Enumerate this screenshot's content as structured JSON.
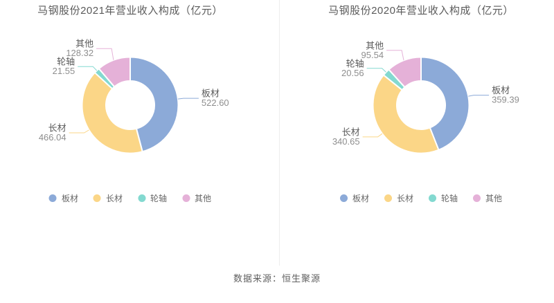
{
  "page": {
    "background": "#ffffff",
    "divider_color": "#ededed"
  },
  "source_note": "数据来源：恒生聚源",
  "chart_data": [
    {
      "type": "pie",
      "title": "马钢股份2021年营业收入构成（亿元）",
      "categories": [
        "板材",
        "长材",
        "轮轴",
        "其他"
      ],
      "values": [
        522.6,
        466.04,
        21.55,
        128.32
      ],
      "colors": [
        "#8caad8",
        "#fbd687",
        "#83d9d0",
        "#e5b1d8"
      ],
      "legend": [
        "板材",
        "长材",
        "轮轴",
        "其他"
      ],
      "legend_position": "bottom",
      "donut": true,
      "start_angle": "top",
      "direction": "clockwise",
      "label_format": "name over value, two decimals, leader lines"
    },
    {
      "type": "pie",
      "title": "马钢股份2020年营业收入构成（亿元）",
      "categories": [
        "板材",
        "长材",
        "轮轴",
        "其他"
      ],
      "values": [
        359.39,
        340.65,
        20.56,
        95.54
      ],
      "colors": [
        "#8caad8",
        "#fbd687",
        "#83d9d0",
        "#e5b1d8"
      ],
      "legend": [
        "板材",
        "长材",
        "轮轴",
        "其他"
      ],
      "legend_position": "bottom",
      "donut": true,
      "start_angle": "top",
      "direction": "clockwise",
      "label_format": "name over value, two decimals, leader lines"
    }
  ]
}
